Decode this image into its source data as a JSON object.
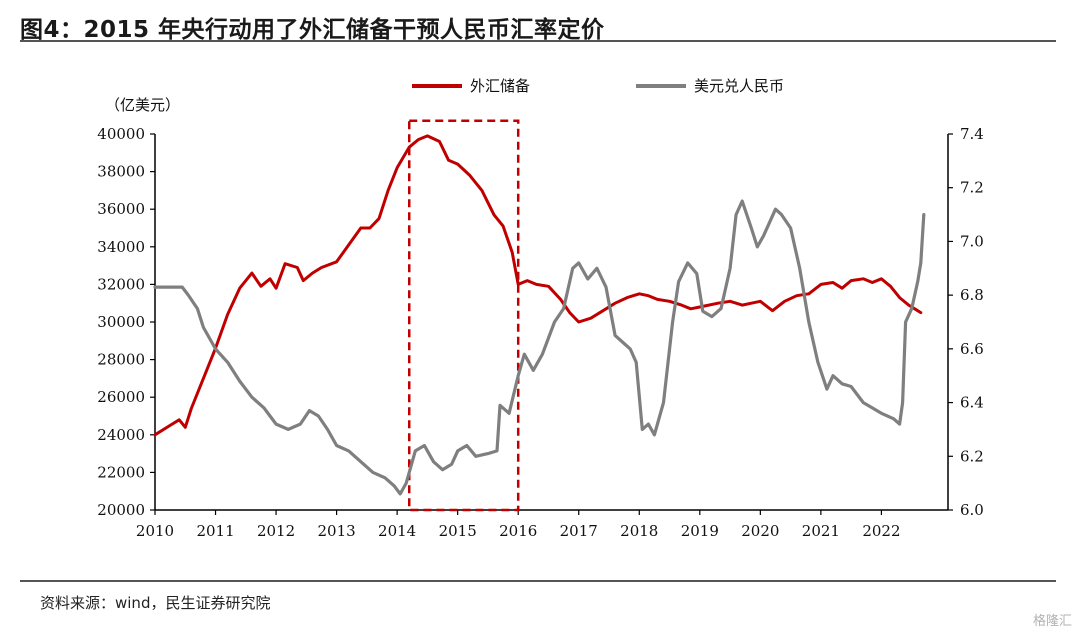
{
  "header": {
    "title": "图4：2015 年央行动用了外汇储备干预人民币汇率定价"
  },
  "footer": {
    "source": "资料来源：wind，民生证券研究院",
    "watermark": "格隆汇"
  },
  "colors": {
    "reserve": "#c00000",
    "fx": "#7f7f7f",
    "box": "#c00000",
    "axis": "#000000"
  },
  "chart_data": {
    "type": "line",
    "title": "",
    "left_unit": "（亿美元）",
    "x_ticks": [
      "2010",
      "2011",
      "2012",
      "2013",
      "2014",
      "2015",
      "2016",
      "2017",
      "2018",
      "2019",
      "2020",
      "2021",
      "2022"
    ],
    "xlim": [
      2010,
      2022.7
    ],
    "left_axis": {
      "ylim": [
        20000,
        40000
      ],
      "ticks": [
        20000,
        22000,
        24000,
        26000,
        28000,
        30000,
        32000,
        34000,
        36000,
        38000,
        40000
      ]
    },
    "right_axis": {
      "ylim": [
        6.0,
        7.4
      ],
      "ticks": [
        "6.0",
        "6.2",
        "6.4",
        "6.6",
        "6.8",
        "7.0",
        "7.2",
        "7.4"
      ]
    },
    "highlight_box": {
      "x_start": 2014.2,
      "x_end": 2016.0,
      "y_top": 40600,
      "y_bottom": 20000
    },
    "series": [
      {
        "name": "外汇储备",
        "axis": "left",
        "points": [
          [
            2010.0,
            24000
          ],
          [
            2010.25,
            24500
          ],
          [
            2010.4,
            24800
          ],
          [
            2010.5,
            24400
          ],
          [
            2010.6,
            25400
          ],
          [
            2010.8,
            27000
          ],
          [
            2011.0,
            28600
          ],
          [
            2011.2,
            30400
          ],
          [
            2011.4,
            31800
          ],
          [
            2011.6,
            32600
          ],
          [
            2011.75,
            31900
          ],
          [
            2011.9,
            32300
          ],
          [
            2012.0,
            31800
          ],
          [
            2012.15,
            33100
          ],
          [
            2012.35,
            32900
          ],
          [
            2012.45,
            32200
          ],
          [
            2012.6,
            32600
          ],
          [
            2012.75,
            32900
          ],
          [
            2013.0,
            33200
          ],
          [
            2013.2,
            34100
          ],
          [
            2013.4,
            35000
          ],
          [
            2013.55,
            35000
          ],
          [
            2013.7,
            35500
          ],
          [
            2013.85,
            37000
          ],
          [
            2014.0,
            38200
          ],
          [
            2014.2,
            39300
          ],
          [
            2014.35,
            39700
          ],
          [
            2014.5,
            39900
          ],
          [
            2014.7,
            39600
          ],
          [
            2014.85,
            38600
          ],
          [
            2015.0,
            38400
          ],
          [
            2015.2,
            37800
          ],
          [
            2015.4,
            37000
          ],
          [
            2015.6,
            35700
          ],
          [
            2015.75,
            35100
          ],
          [
            2015.9,
            33700
          ],
          [
            2016.0,
            32000
          ],
          [
            2016.15,
            32200
          ],
          [
            2016.3,
            32000
          ],
          [
            2016.5,
            31900
          ],
          [
            2016.7,
            31200
          ],
          [
            2016.85,
            30500
          ],
          [
            2017.0,
            30000
          ],
          [
            2017.2,
            30200
          ],
          [
            2017.4,
            30600
          ],
          [
            2017.6,
            31000
          ],
          [
            2017.8,
            31300
          ],
          [
            2018.0,
            31500
          ],
          [
            2018.15,
            31400
          ],
          [
            2018.3,
            31200
          ],
          [
            2018.5,
            31100
          ],
          [
            2018.7,
            30900
          ],
          [
            2018.85,
            30700
          ],
          [
            2019.0,
            30800
          ],
          [
            2019.3,
            31000
          ],
          [
            2019.5,
            31100
          ],
          [
            2019.7,
            30900
          ],
          [
            2019.85,
            31000
          ],
          [
            2020.0,
            31100
          ],
          [
            2020.2,
            30600
          ],
          [
            2020.4,
            31100
          ],
          [
            2020.6,
            31400
          ],
          [
            2020.8,
            31500
          ],
          [
            2021.0,
            32000
          ],
          [
            2021.2,
            32100
          ],
          [
            2021.35,
            31800
          ],
          [
            2021.5,
            32200
          ],
          [
            2021.7,
            32300
          ],
          [
            2021.85,
            32100
          ],
          [
            2022.0,
            32300
          ],
          [
            2022.15,
            31900
          ],
          [
            2022.3,
            31300
          ],
          [
            2022.45,
            30900
          ],
          [
            2022.55,
            30700
          ],
          [
            2022.65,
            30500
          ]
        ]
      },
      {
        "name": "美元兑人民币",
        "axis": "right",
        "points": [
          [
            2010.0,
            6.83
          ],
          [
            2010.2,
            6.83
          ],
          [
            2010.45,
            6.83
          ],
          [
            2010.55,
            6.8
          ],
          [
            2010.7,
            6.75
          ],
          [
            2010.8,
            6.68
          ],
          [
            2011.0,
            6.6
          ],
          [
            2011.2,
            6.55
          ],
          [
            2011.4,
            6.48
          ],
          [
            2011.6,
            6.42
          ],
          [
            2011.8,
            6.38
          ],
          [
            2011.9,
            6.35
          ],
          [
            2012.0,
            6.32
          ],
          [
            2012.2,
            6.3
          ],
          [
            2012.4,
            6.32
          ],
          [
            2012.55,
            6.37
          ],
          [
            2012.7,
            6.35
          ],
          [
            2012.85,
            6.3
          ],
          [
            2013.0,
            6.24
          ],
          [
            2013.2,
            6.22
          ],
          [
            2013.4,
            6.18
          ],
          [
            2013.6,
            6.14
          ],
          [
            2013.8,
            6.12
          ],
          [
            2013.95,
            6.09
          ],
          [
            2014.05,
            6.06
          ],
          [
            2014.15,
            6.1
          ],
          [
            2014.3,
            6.22
          ],
          [
            2014.45,
            6.24
          ],
          [
            2014.6,
            6.18
          ],
          [
            2014.75,
            6.15
          ],
          [
            2014.9,
            6.17
          ],
          [
            2015.0,
            6.22
          ],
          [
            2015.15,
            6.24
          ],
          [
            2015.3,
            6.2
          ],
          [
            2015.5,
            6.21
          ],
          [
            2015.65,
            6.22
          ],
          [
            2015.7,
            6.39
          ],
          [
            2015.85,
            6.36
          ],
          [
            2016.0,
            6.5
          ],
          [
            2016.1,
            6.58
          ],
          [
            2016.25,
            6.52
          ],
          [
            2016.4,
            6.58
          ],
          [
            2016.6,
            6.7
          ],
          [
            2016.75,
            6.75
          ],
          [
            2016.9,
            6.9
          ],
          [
            2017.0,
            6.92
          ],
          [
            2017.15,
            6.86
          ],
          [
            2017.3,
            6.9
          ],
          [
            2017.45,
            6.83
          ],
          [
            2017.6,
            6.65
          ],
          [
            2017.75,
            6.62
          ],
          [
            2017.85,
            6.6
          ],
          [
            2017.95,
            6.55
          ],
          [
            2018.05,
            6.3
          ],
          [
            2018.15,
            6.32
          ],
          [
            2018.25,
            6.28
          ],
          [
            2018.4,
            6.4
          ],
          [
            2018.55,
            6.7
          ],
          [
            2018.65,
            6.85
          ],
          [
            2018.8,
            6.92
          ],
          [
            2018.95,
            6.88
          ],
          [
            2019.05,
            6.74
          ],
          [
            2019.2,
            6.72
          ],
          [
            2019.35,
            6.75
          ],
          [
            2019.5,
            6.9
          ],
          [
            2019.6,
            7.1
          ],
          [
            2019.7,
            7.15
          ],
          [
            2019.85,
            7.05
          ],
          [
            2019.95,
            6.98
          ],
          [
            2020.05,
            7.02
          ],
          [
            2020.25,
            7.12
          ],
          [
            2020.35,
            7.1
          ],
          [
            2020.5,
            7.05
          ],
          [
            2020.65,
            6.9
          ],
          [
            2020.8,
            6.7
          ],
          [
            2020.95,
            6.55
          ],
          [
            2021.1,
            6.45
          ],
          [
            2021.2,
            6.5
          ],
          [
            2021.35,
            6.47
          ],
          [
            2021.5,
            6.46
          ],
          [
            2021.7,
            6.4
          ],
          [
            2021.85,
            6.38
          ],
          [
            2022.0,
            6.36
          ],
          [
            2022.2,
            6.34
          ],
          [
            2022.3,
            6.32
          ],
          [
            2022.35,
            6.4
          ],
          [
            2022.4,
            6.7
          ],
          [
            2022.5,
            6.75
          ],
          [
            2022.6,
            6.85
          ],
          [
            2022.65,
            6.92
          ],
          [
            2022.7,
            7.1
          ]
        ]
      }
    ]
  }
}
